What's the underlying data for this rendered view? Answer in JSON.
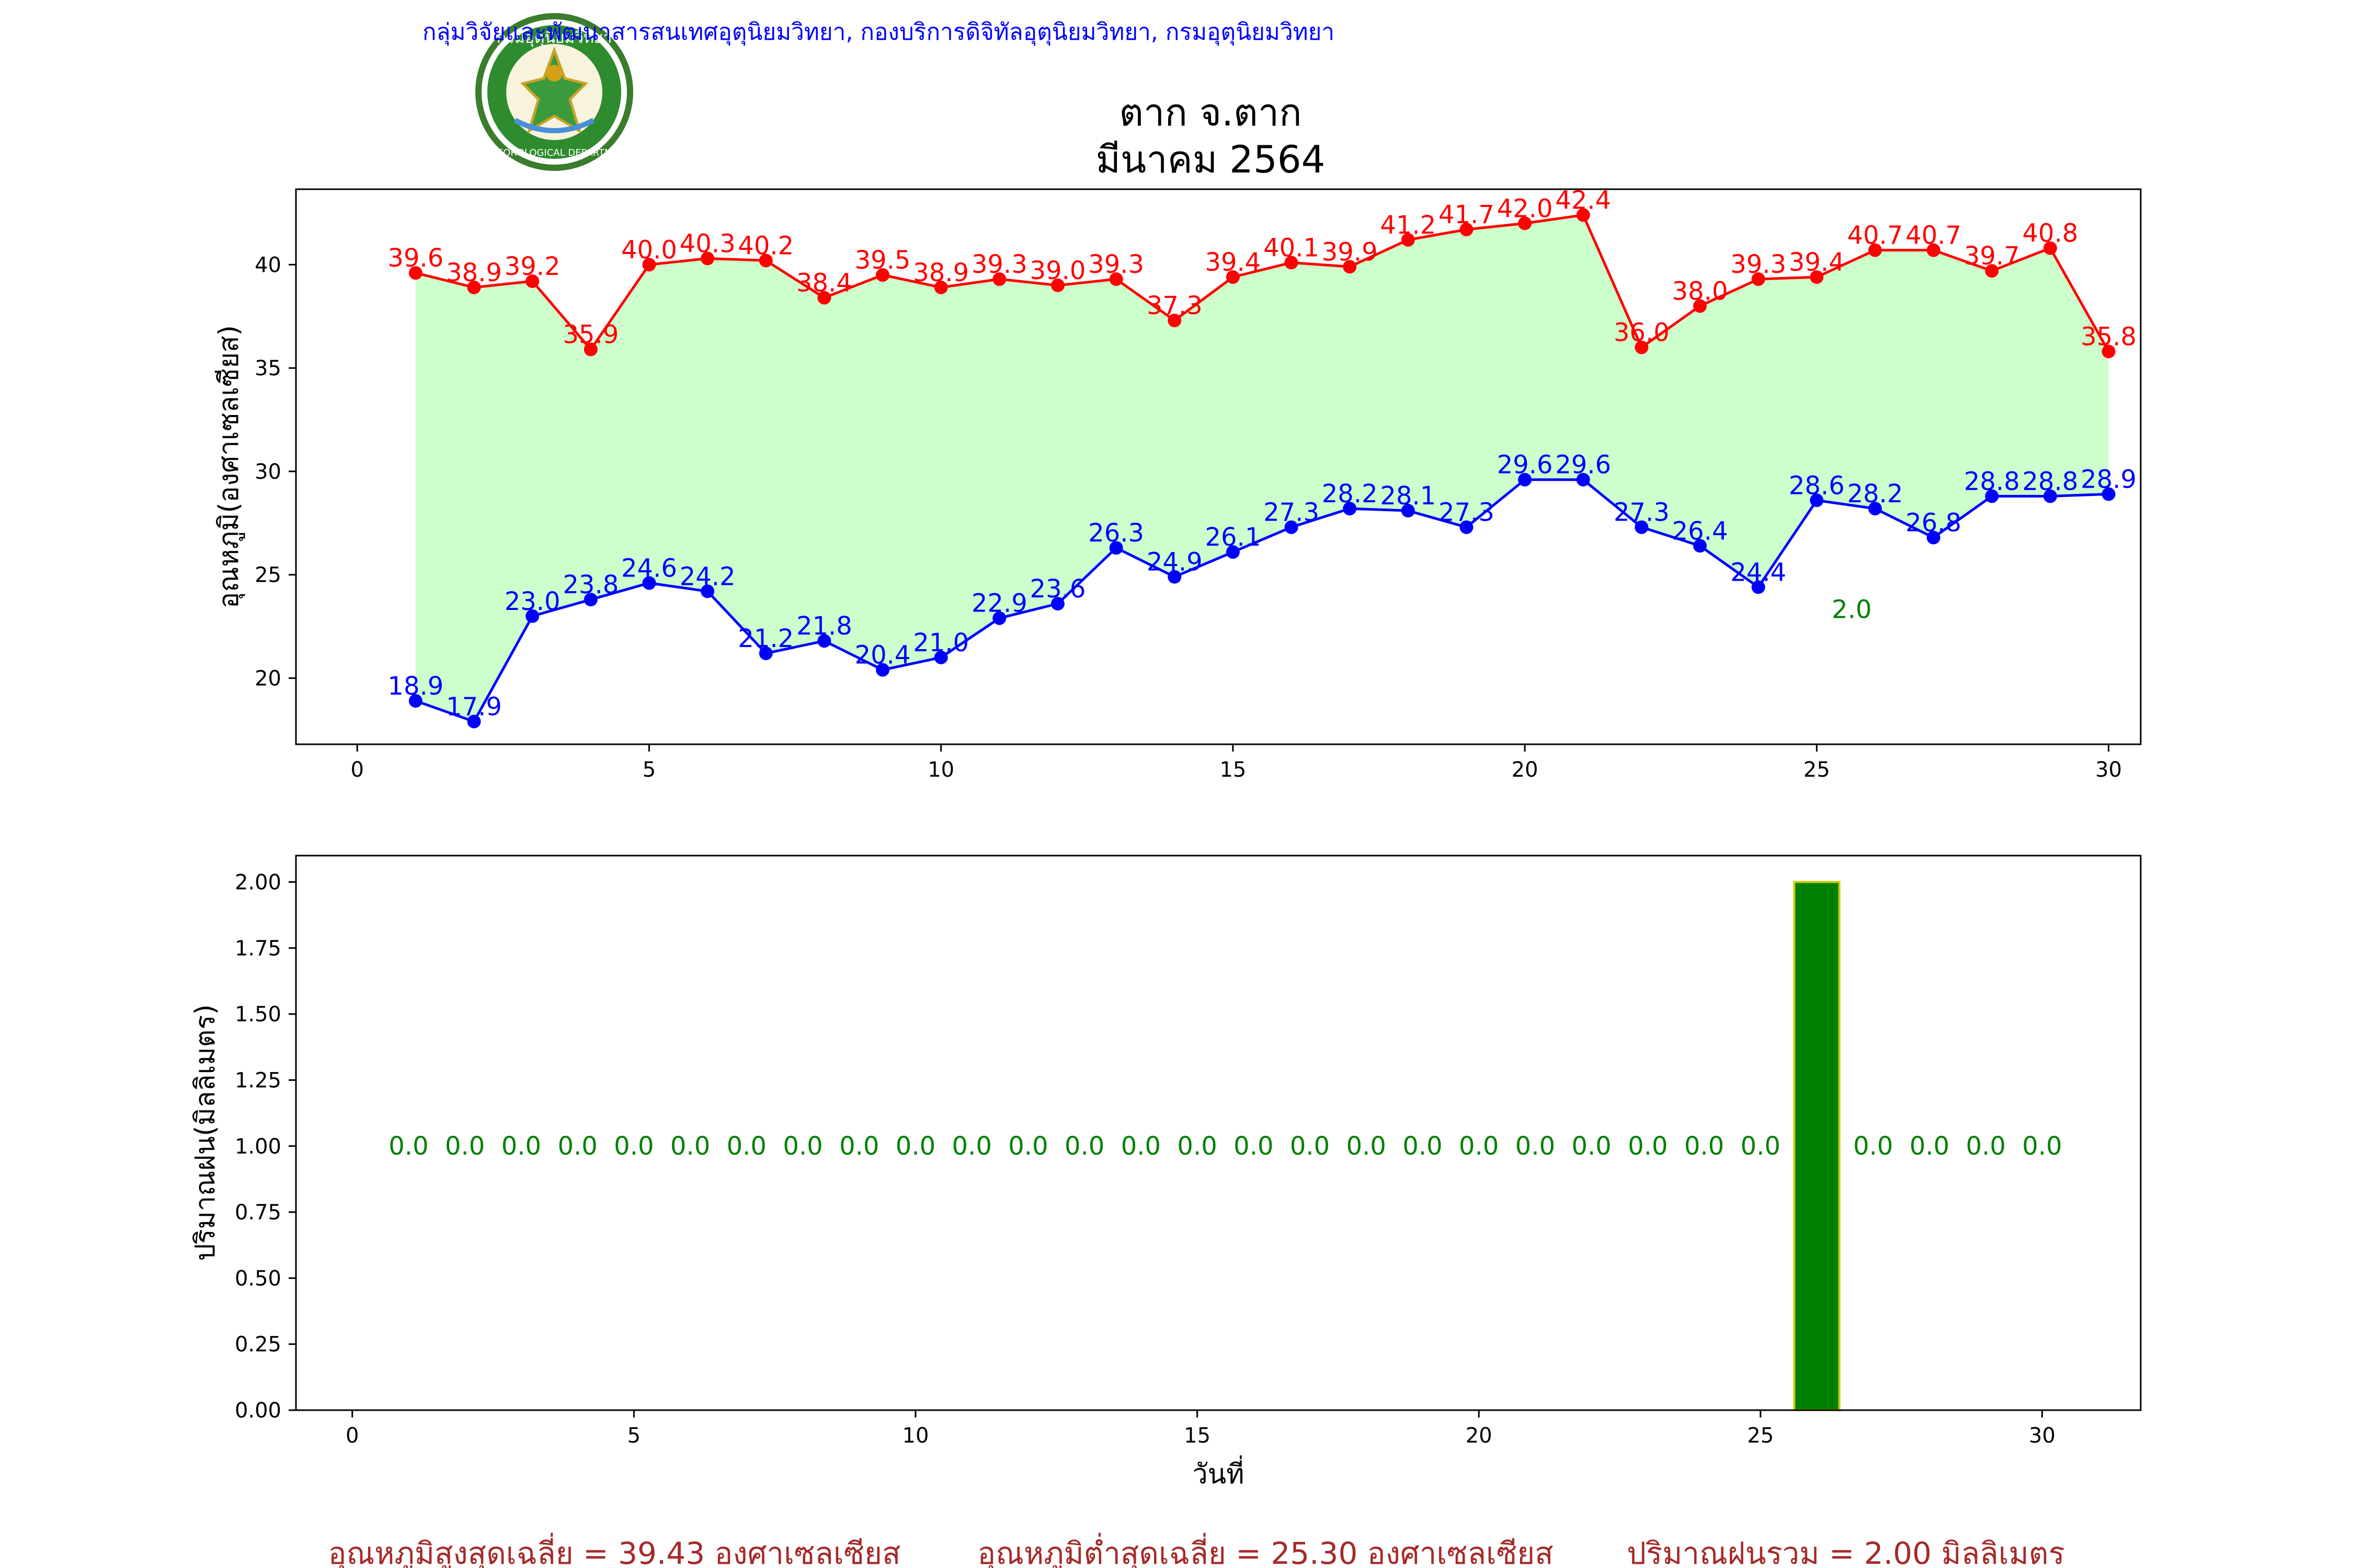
{
  "header": {
    "agency_line": "กลุ่มวิจัยและพัฒนาสารสนเทศอุตุนิยมวิทยา, กองบริการดิจิทัลอุตุนิยมวิทยา, กรมอุตุนิยมวิทยา",
    "title_line1": "ตาก จ.ตาก",
    "title_line2": "มีนาคม 2564"
  },
  "logo": {
    "text_top": "กรมอุตุนิยมวิทยา",
    "text_bottom": "METEOROLOGICAL DEPARTMENT"
  },
  "footer": {
    "avg_max": "อุณหภูมิสูงสุดเฉลี่ย = 39.43 องศาเซลเซียส",
    "avg_min": "อุณหภูมิต่ำสุดเฉลี่ย = 25.30 องศาเซลเซียส",
    "total_rain": "ปริมาณฝนรวม = 2.00 มิลลิเมตร"
  },
  "colors": {
    "max_line": "#ff0000",
    "min_line": "#0000ff",
    "band_fill": "#ccffcc",
    "rain_bar": "#008000",
    "rain_bar_edge": "#cccc00",
    "rain_label": "#008000",
    "agency_text": "#0000ff",
    "footer_text": "#a52a2a"
  },
  "chart_data": [
    {
      "type": "line",
      "ylabel": "อุณหภูมิ(องศาเซลเซียส)",
      "xlim": [
        -1.05,
        30.55
      ],
      "ylim": [
        16.8,
        43.65
      ],
      "xticks": [
        "0",
        "5",
        "10",
        "15",
        "20",
        "25",
        "30"
      ],
      "yticks": [
        "20",
        "25",
        "30",
        "35",
        "40"
      ],
      "x": [
        1,
        2,
        3,
        4,
        5,
        6,
        7,
        8,
        9,
        10,
        11,
        12,
        13,
        14,
        15,
        16,
        17,
        18,
        19,
        20,
        21,
        22,
        23,
        24,
        25,
        26,
        27,
        28,
        29,
        30
      ],
      "series": [
        {
          "role": "max",
          "values": [
            39.6,
            38.9,
            39.2,
            35.9,
            40.0,
            40.3,
            40.2,
            38.4,
            39.5,
            38.9,
            39.3,
            39.0,
            39.3,
            37.3,
            39.4,
            40.1,
            39.9,
            41.2,
            41.7,
            42.0,
            42.4,
            36.0,
            38.0,
            39.3,
            39.4,
            40.7,
            40.7,
            39.7,
            40.8,
            35.8
          ],
          "labels": [
            "39.6",
            "38.9",
            "39.2",
            "35.9",
            "40.0",
            "40.3",
            "40.2",
            "38.4",
            "39.5",
            "38.9",
            "39.3",
            "39.0",
            "39.3",
            "37.3",
            "39.4",
            "40.1",
            "39.9",
            "41.2",
            "41.7",
            "42.0",
            "42.4",
            "36.0",
            "38.0",
            "39.3",
            "39.4",
            "40.7",
            "40.7",
            "39.7",
            "40.8",
            "35.8"
          ]
        },
        {
          "role": "min",
          "values": [
            18.9,
            17.9,
            23.0,
            23.8,
            24.6,
            24.2,
            21.2,
            21.8,
            20.4,
            21.0,
            22.9,
            23.6,
            26.3,
            24.9,
            26.1,
            27.3,
            28.2,
            28.1,
            27.3,
            29.6,
            29.6,
            27.3,
            26.4,
            24.4,
            28.6,
            28.2,
            26.8,
            28.8,
            28.8,
            28.9
          ],
          "labels": [
            "18.9",
            "17.9",
            "23.0",
            "23.8",
            "24.6",
            "24.2",
            "21.2",
            "21.8",
            "20.4",
            "21.0",
            "22.9",
            "23.6",
            "26.3",
            "24.9",
            "26.1",
            "27.3",
            "28.2",
            "28.1",
            "27.3",
            "29.6",
            "29.6",
            "27.3",
            "26.4",
            "24.4",
            "28.6",
            "28.2",
            "26.8",
            "28.8",
            "28.8",
            "28.9"
          ]
        }
      ],
      "rain_note": {
        "text": "2.0",
        "x": 25.6,
        "y": 22.9
      }
    },
    {
      "type": "bar",
      "xlabel": "วันที่",
      "ylabel": "ปริมาณฝน(มิลลิเมตร)",
      "xlim": [
        -1.0,
        31.75
      ],
      "ylim": [
        0,
        2.1
      ],
      "xticks": [
        "0",
        "5",
        "10",
        "15",
        "20",
        "25",
        "30"
      ],
      "yticks": [
        "0.00",
        "0.25",
        "0.50",
        "0.75",
        "1.00",
        "1.25",
        "1.50",
        "1.75",
        "2.00"
      ],
      "x": [
        1,
        2,
        3,
        4,
        5,
        6,
        7,
        8,
        9,
        10,
        11,
        12,
        13,
        14,
        15,
        16,
        17,
        18,
        19,
        20,
        21,
        22,
        23,
        24,
        25,
        26,
        27,
        28,
        29,
        30
      ],
      "values": [
        0,
        0,
        0,
        0,
        0,
        0,
        0,
        0,
        0,
        0,
        0,
        0,
        0,
        0,
        0,
        0,
        0,
        0,
        0,
        0,
        0,
        0,
        0,
        0,
        0,
        2.0,
        0,
        0,
        0,
        0
      ],
      "labels": [
        "0.0",
        "0.0",
        "0.0",
        "0.0",
        "0.0",
        "0.0",
        "0.0",
        "0.0",
        "0.0",
        "0.0",
        "0.0",
        "0.0",
        "0.0",
        "0.0",
        "0.0",
        "0.0",
        "0.0",
        "0.0",
        "0.0",
        "0.0",
        "0.0",
        "0.0",
        "0.0",
        "0.0",
        "0.0",
        "",
        "0.0",
        "0.0",
        "0.0",
        "0.0"
      ],
      "label_y": 1.0
    }
  ]
}
